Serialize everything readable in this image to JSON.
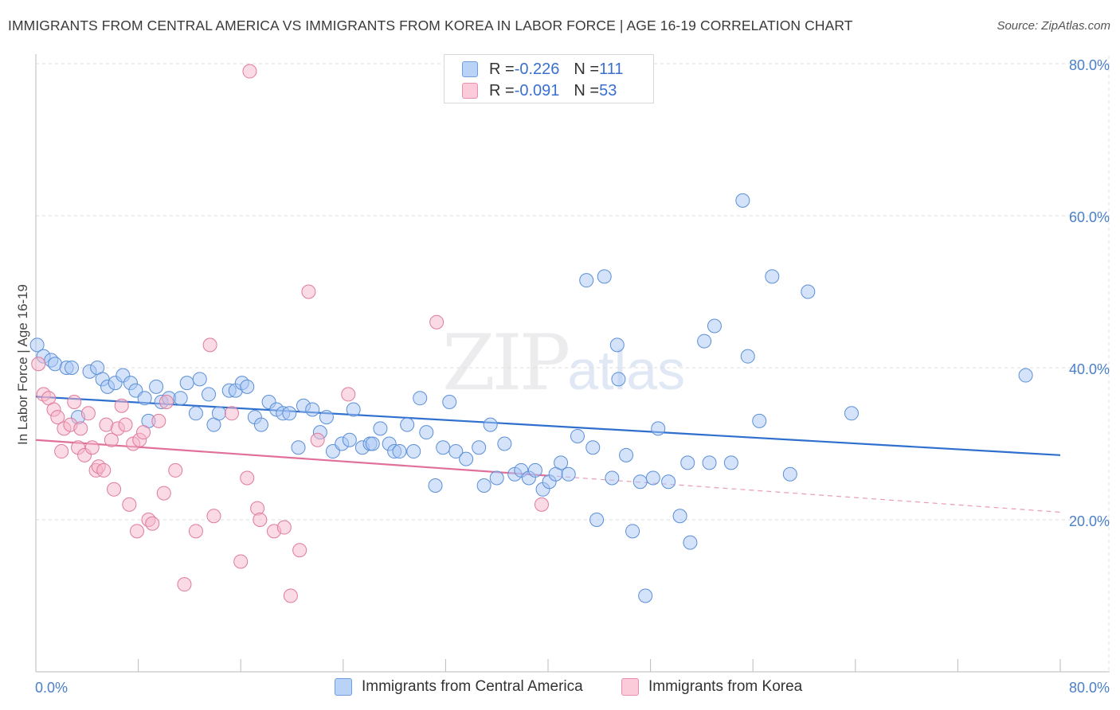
{
  "title": "IMMIGRANTS FROM CENTRAL AMERICA VS IMMIGRANTS FROM KOREA IN LABOR FORCE | AGE 16-19 CORRELATION CHART",
  "source": "Source: ZipAtlas.com",
  "watermark": {
    "zip": "ZIP",
    "atlas": "atlas"
  },
  "legend_top": [
    {
      "r_label": "R = ",
      "r_value": "-0.226",
      "n_label": "N = ",
      "n_value": "111",
      "color": "#a9c8f5"
    },
    {
      "r_label": "R = ",
      "r_value": "-0.091",
      "n_label": "N = ",
      "n_value": "53",
      "color": "#f6b6c9"
    }
  ],
  "chart_data": {
    "type": "scatter",
    "title": "IMMIGRANTS FROM CENTRAL AMERICA VS IMMIGRANTS FROM KOREA IN LABOR FORCE | AGE 16-19 CORRELATION CHART",
    "xlabel": "",
    "ylabel": "In Labor Force | Age 16-19",
    "xlim": [
      0,
      80
    ],
    "ylim": [
      0,
      80
    ],
    "x_tick_labels": [
      "0.0%",
      "80.0%"
    ],
    "y_ticks": [
      20,
      40,
      60,
      80
    ],
    "y_tick_labels": [
      "20.0%",
      "40.0%",
      "60.0%",
      "80.0%"
    ],
    "grid": true,
    "legend_position": "bottom",
    "series": [
      {
        "name": "Immigrants from Central America",
        "color": "#a9c8f5",
        "stroke": "#5b8fd6",
        "trend": {
          "x": [
            0,
            80
          ],
          "y": [
            36.2,
            28.5
          ],
          "color": "#2f6fce"
        },
        "points": [
          [
            0.1,
            43.0
          ],
          [
            0.6,
            41.5
          ],
          [
            1.2,
            41.0
          ],
          [
            1.5,
            40.5
          ],
          [
            2.4,
            40.0
          ],
          [
            2.8,
            40.0
          ],
          [
            3.3,
            33.5
          ],
          [
            4.2,
            39.5
          ],
          [
            4.8,
            40.0
          ],
          [
            5.2,
            38.5
          ],
          [
            5.6,
            37.5
          ],
          [
            6.2,
            38.0
          ],
          [
            6.8,
            39.0
          ],
          [
            7.4,
            38.0
          ],
          [
            7.8,
            37.0
          ],
          [
            8.5,
            36.0
          ],
          [
            8.8,
            33.0
          ],
          [
            9.4,
            37.5
          ],
          [
            9.8,
            35.5
          ],
          [
            10.4,
            36.0
          ],
          [
            11.3,
            36.0
          ],
          [
            11.8,
            38.0
          ],
          [
            12.5,
            34.0
          ],
          [
            12.8,
            38.5
          ],
          [
            13.5,
            36.5
          ],
          [
            13.9,
            32.5
          ],
          [
            14.3,
            34.0
          ],
          [
            15.1,
            37.0
          ],
          [
            15.6,
            37.0
          ],
          [
            16.1,
            38.0
          ],
          [
            16.5,
            37.5
          ],
          [
            17.1,
            33.5
          ],
          [
            17.6,
            32.5
          ],
          [
            18.2,
            35.5
          ],
          [
            18.8,
            34.5
          ],
          [
            19.3,
            34.0
          ],
          [
            19.8,
            34.0
          ],
          [
            20.5,
            29.5
          ],
          [
            20.9,
            35.0
          ],
          [
            21.6,
            34.5
          ],
          [
            22.2,
            31.5
          ],
          [
            22.7,
            33.5
          ],
          [
            23.2,
            29.0
          ],
          [
            23.9,
            30.0
          ],
          [
            24.5,
            30.5
          ],
          [
            24.8,
            34.5
          ],
          [
            25.5,
            29.5
          ],
          [
            26.1,
            30.0
          ],
          [
            26.3,
            30.0
          ],
          [
            26.9,
            32.0
          ],
          [
            27.6,
            30.0
          ],
          [
            28.0,
            29.0
          ],
          [
            28.4,
            29.0
          ],
          [
            29.5,
            29.0
          ],
          [
            29.0,
            32.5
          ],
          [
            30.0,
            36.0
          ],
          [
            30.5,
            31.5
          ],
          [
            31.2,
            24.5
          ],
          [
            31.8,
            29.5
          ],
          [
            32.3,
            35.5
          ],
          [
            32.8,
            29.0
          ],
          [
            33.6,
            28.0
          ],
          [
            34.6,
            29.5
          ],
          [
            35.0,
            24.5
          ],
          [
            35.5,
            32.5
          ],
          [
            36.0,
            25.5
          ],
          [
            36.6,
            30.0
          ],
          [
            37.4,
            26.0
          ],
          [
            37.9,
            26.5
          ],
          [
            38.5,
            25.5
          ],
          [
            39.0,
            26.5
          ],
          [
            39.6,
            24.0
          ],
          [
            40.1,
            25.0
          ],
          [
            40.6,
            26.0
          ],
          [
            41.0,
            27.5
          ],
          [
            41.6,
            26.0
          ],
          [
            42.3,
            31.0
          ],
          [
            43.0,
            51.5
          ],
          [
            43.5,
            29.5
          ],
          [
            43.8,
            20.0
          ],
          [
            44.4,
            52.0
          ],
          [
            45.0,
            25.5
          ],
          [
            45.4,
            43.0
          ],
          [
            45.5,
            38.5
          ],
          [
            46.1,
            28.5
          ],
          [
            46.6,
            18.5
          ],
          [
            47.2,
            25.0
          ],
          [
            47.6,
            10.0
          ],
          [
            48.2,
            25.5
          ],
          [
            48.6,
            32.0
          ],
          [
            49.4,
            25.0
          ],
          [
            50.3,
            20.5
          ],
          [
            50.9,
            27.5
          ],
          [
            51.1,
            17.0
          ],
          [
            52.2,
            43.5
          ],
          [
            52.6,
            27.5
          ],
          [
            53.0,
            45.5
          ],
          [
            54.3,
            27.5
          ],
          [
            55.2,
            62.0
          ],
          [
            55.6,
            41.5
          ],
          [
            56.5,
            33.0
          ],
          [
            57.5,
            52.0
          ],
          [
            58.9,
            26.0
          ],
          [
            60.3,
            50.0
          ],
          [
            63.7,
            34.0
          ],
          [
            77.3,
            39.0
          ]
        ]
      },
      {
        "name": "Immigrants from Korea",
        "color": "#f6b6c9",
        "stroke": "#e07a9c",
        "trend": {
          "x": [
            0,
            40
          ],
          "y": [
            30.5,
            25.8
          ],
          "color": "#e0709a",
          "dashed_extension": {
            "x": [
              40,
              80
            ],
            "y": [
              25.8,
              21.0
            ]
          }
        },
        "points": [
          [
            0.2,
            40.5
          ],
          [
            0.6,
            36.5
          ],
          [
            1.0,
            36.0
          ],
          [
            1.4,
            34.5
          ],
          [
            1.7,
            33.5
          ],
          [
            2.0,
            29.0
          ],
          [
            2.2,
            32.0
          ],
          [
            2.7,
            32.5
          ],
          [
            3.0,
            35.5
          ],
          [
            3.3,
            29.5
          ],
          [
            3.5,
            32.0
          ],
          [
            3.8,
            28.5
          ],
          [
            4.1,
            34.0
          ],
          [
            4.4,
            29.5
          ],
          [
            4.7,
            26.5
          ],
          [
            4.9,
            27.0
          ],
          [
            5.3,
            26.5
          ],
          [
            5.5,
            32.5
          ],
          [
            5.9,
            30.5
          ],
          [
            6.1,
            24.0
          ],
          [
            6.4,
            32.0
          ],
          [
            6.7,
            35.0
          ],
          [
            7.0,
            32.5
          ],
          [
            7.3,
            22.0
          ],
          [
            7.6,
            30.0
          ],
          [
            7.9,
            18.5
          ],
          [
            8.1,
            30.5
          ],
          [
            8.4,
            31.5
          ],
          [
            8.8,
            20.0
          ],
          [
            9.1,
            19.5
          ],
          [
            9.6,
            33.0
          ],
          [
            10.0,
            23.5
          ],
          [
            10.2,
            35.5
          ],
          [
            10.9,
            26.5
          ],
          [
            11.6,
            11.5
          ],
          [
            12.5,
            18.5
          ],
          [
            13.6,
            43.0
          ],
          [
            13.9,
            20.5
          ],
          [
            15.3,
            34.0
          ],
          [
            16.0,
            14.5
          ],
          [
            16.5,
            25.5
          ],
          [
            17.3,
            21.5
          ],
          [
            17.5,
            20.0
          ],
          [
            18.6,
            18.5
          ],
          [
            19.4,
            19.0
          ],
          [
            19.9,
            10.0
          ],
          [
            20.6,
            16.0
          ],
          [
            21.3,
            50.0
          ],
          [
            22.0,
            30.5
          ],
          [
            24.4,
            36.5
          ],
          [
            31.3,
            46.0
          ],
          [
            39.5,
            22.0
          ],
          [
            16.7,
            79.0
          ]
        ]
      }
    ]
  },
  "legend_bottom": [
    {
      "label": "Immigrants from Central America",
      "color": "#a9c8f5"
    },
    {
      "label": "Immigrants from Korea",
      "color": "#f6b6c9"
    }
  ]
}
